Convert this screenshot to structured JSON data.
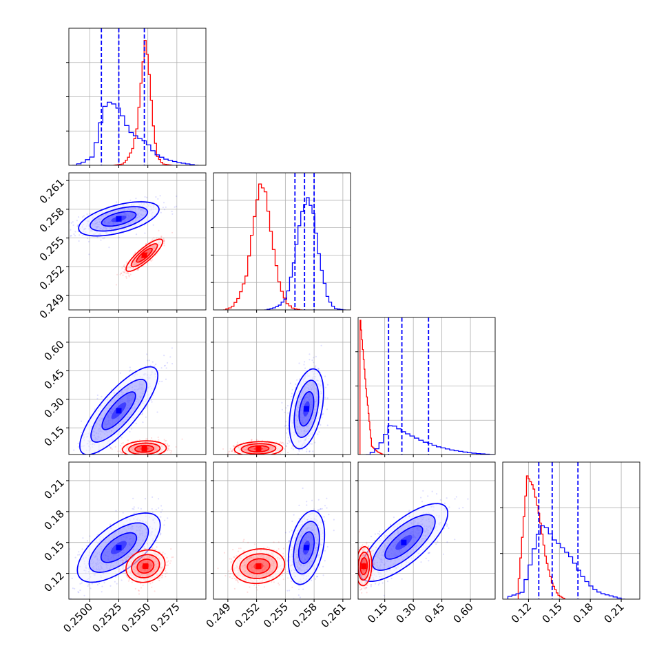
{
  "chart_data": {
    "type": "corner",
    "grid": true,
    "colors": {
      "red": "#ff0000",
      "blue": "#0000ff",
      "grid": "#b0b0b0",
      "frame": "#000000"
    },
    "parameters": [
      {
        "xlim": [
          0.2482,
          0.26
        ],
        "ticks": [
          0.25,
          0.2525,
          0.255,
          0.2575
        ],
        "tick_labels": [
          "0.2500",
          "0.2525",
          "0.2550",
          "0.2575"
        ]
      },
      {
        "xlim": [
          0.2475,
          0.2618
        ],
        "ticks": [
          0.249,
          0.252,
          0.255,
          0.258,
          0.261
        ],
        "tick_labels": [
          "0.249",
          "0.252",
          "0.255",
          "0.258",
          "0.261"
        ]
      },
      {
        "xlim": [
          0.01,
          0.73
        ],
        "ticks": [
          0.15,
          0.3,
          0.45,
          0.6
        ],
        "tick_labels": [
          "0.15",
          "0.30",
          "0.45",
          "0.60"
        ]
      },
      {
        "xlim": [
          0.095,
          0.228
        ],
        "ticks": [
          0.12,
          0.15,
          0.18,
          0.21
        ],
        "tick_labels": [
          "0.12",
          "0.15",
          "0.18",
          "0.21"
        ]
      }
    ],
    "marginals": [
      {
        "quantiles": [
          0.251,
          0.2525,
          0.2547
        ],
        "diag_ticks": 3,
        "red": [
          [
            0.252,
            0
          ],
          [
            0.2528,
            0.01
          ],
          [
            0.2532,
            0.05
          ],
          [
            0.2536,
            0.12
          ],
          [
            0.254,
            0.28
          ],
          [
            0.2543,
            0.58
          ],
          [
            0.2547,
            0.93
          ],
          [
            0.255,
            0.7
          ],
          [
            0.2554,
            0.28
          ],
          [
            0.2557,
            0.07
          ],
          [
            0.2562,
            0.01
          ],
          [
            0.257,
            0
          ]
        ],
        "blue": [
          [
            0.2485,
            0
          ],
          [
            0.2492,
            0.02
          ],
          [
            0.25,
            0.06
          ],
          [
            0.2505,
            0.2
          ],
          [
            0.251,
            0.42
          ],
          [
            0.2515,
            0.46
          ],
          [
            0.2521,
            0.44
          ],
          [
            0.2527,
            0.35
          ],
          [
            0.2532,
            0.25
          ],
          [
            0.254,
            0.2
          ],
          [
            0.2547,
            0.17
          ],
          [
            0.2552,
            0.11
          ],
          [
            0.2557,
            0.07
          ],
          [
            0.2565,
            0.04
          ],
          [
            0.2575,
            0.02
          ],
          [
            0.259,
            0
          ]
        ]
      },
      {
        "quantiles": [
          0.256,
          0.257,
          0.258
        ],
        "diag_ticks": 4,
        "red": [
          [
            0.2485,
            0
          ],
          [
            0.2493,
            0.02
          ],
          [
            0.25,
            0.09
          ],
          [
            0.2508,
            0.25
          ],
          [
            0.2515,
            0.62
          ],
          [
            0.2522,
            0.92
          ],
          [
            0.2528,
            0.86
          ],
          [
            0.2535,
            0.5
          ],
          [
            0.2543,
            0.17
          ],
          [
            0.255,
            0.05
          ],
          [
            0.2557,
            0.01
          ],
          [
            0.2565,
            0
          ]
        ],
        "blue": [
          [
            0.2528,
            0
          ],
          [
            0.2535,
            0.01
          ],
          [
            0.2542,
            0.03
          ],
          [
            0.255,
            0.09
          ],
          [
            0.2557,
            0.33
          ],
          [
            0.2565,
            0.7
          ],
          [
            0.2572,
            0.82
          ],
          [
            0.2578,
            0.7
          ],
          [
            0.2585,
            0.34
          ],
          [
            0.2593,
            0.08
          ],
          [
            0.26,
            0.01
          ],
          [
            0.261,
            0
          ]
        ]
      },
      {
        "quantiles": [
          0.17,
          0.24,
          0.38
        ],
        "diag_ticks": 3,
        "red": [
          [
            0.02,
            0.98
          ],
          [
            0.05,
            0.48
          ],
          [
            0.08,
            0.06
          ],
          [
            0.11,
            0.02
          ],
          [
            0.14,
            0
          ]
        ],
        "blue": [
          [
            0.05,
            0
          ],
          [
            0.08,
            0.02
          ],
          [
            0.11,
            0.06
          ],
          [
            0.14,
            0.14
          ],
          [
            0.17,
            0.22
          ],
          [
            0.2,
            0.2
          ],
          [
            0.23,
            0.17
          ],
          [
            0.26,
            0.15
          ],
          [
            0.29,
            0.13
          ],
          [
            0.32,
            0.11
          ],
          [
            0.35,
            0.09
          ],
          [
            0.38,
            0.08
          ],
          [
            0.41,
            0.06
          ],
          [
            0.44,
            0.05
          ],
          [
            0.47,
            0.04
          ],
          [
            0.5,
            0.03
          ],
          [
            0.53,
            0.025
          ],
          [
            0.56,
            0.018
          ],
          [
            0.59,
            0.012
          ],
          [
            0.62,
            0.008
          ],
          [
            0.65,
            0.005
          ],
          [
            0.7,
            0
          ]
        ]
      },
      {
        "quantiles": [
          0.13,
          0.143,
          0.168
        ],
        "diag_ticks": 2,
        "red": [
          [
            0.11,
            0.15
          ],
          [
            0.118,
            0.9
          ],
          [
            0.124,
            0.82
          ],
          [
            0.13,
            0.6
          ],
          [
            0.136,
            0.3
          ],
          [
            0.142,
            0.12
          ],
          [
            0.148,
            0.03
          ],
          [
            0.155,
            0
          ]
        ],
        "blue": [
          [
            0.1,
            0.02
          ],
          [
            0.112,
            0.05
          ],
          [
            0.118,
            0.2
          ],
          [
            0.124,
            0.38
          ],
          [
            0.13,
            0.54
          ],
          [
            0.136,
            0.52
          ],
          [
            0.142,
            0.44
          ],
          [
            0.148,
            0.4
          ],
          [
            0.154,
            0.35
          ],
          [
            0.16,
            0.3
          ],
          [
            0.166,
            0.22
          ],
          [
            0.172,
            0.15
          ],
          [
            0.178,
            0.1
          ],
          [
            0.184,
            0.06
          ],
          [
            0.19,
            0.04
          ],
          [
            0.2,
            0.02
          ],
          [
            0.21,
            0
          ]
        ]
      }
    ],
    "joints": [
      {
        "i": 1,
        "j": 0,
        "red": {
          "c": [
            0.2547,
            0.2532
          ],
          "s": [
            0.00075,
            0.0008
          ],
          "r": 0.85
        },
        "blue": {
          "c": [
            0.2525,
            0.257
          ],
          "s": [
            0.00165,
            0.00085
          ],
          "r": 0.55
        }
      },
      {
        "i": 2,
        "j": 0,
        "red": {
          "c": [
            0.2547,
            0.04
          ],
          "s": [
            0.0009,
            0.02
          ],
          "r": 0.1
        },
        "blue": {
          "c": [
            0.2525,
            0.24
          ],
          "s": [
            0.0016,
            0.11
          ],
          "r": 0.8
        }
      },
      {
        "i": 2,
        "j": 1,
        "red": {
          "c": [
            0.2522,
            0.04
          ],
          "s": [
            0.0012,
            0.018
          ],
          "r": 0.1
        },
        "blue": {
          "c": [
            0.2572,
            0.25
          ],
          "s": [
            0.00085,
            0.1
          ],
          "r": 0.4
        }
      },
      {
        "i": 3,
        "j": 0,
        "red": {
          "c": [
            0.2548,
            0.127
          ],
          "s": [
            0.0008,
            0.0075
          ],
          "r": 0.15
        },
        "blue": {
          "c": [
            0.2525,
            0.145
          ],
          "s": [
            0.0017,
            0.016
          ],
          "r": 0.65
        }
      },
      {
        "i": 3,
        "j": 1,
        "red": {
          "c": [
            0.2522,
            0.127
          ],
          "s": [
            0.0013,
            0.008
          ],
          "r": 0.1
        },
        "blue": {
          "c": [
            0.2572,
            0.145
          ],
          "s": [
            0.0009,
            0.017
          ],
          "r": 0.35
        }
      },
      {
        "i": 3,
        "j": 2,
        "red": {
          "c": [
            0.04,
            0.127
          ],
          "s": [
            0.02,
            0.009
          ],
          "r": 0.1
        },
        "blue": {
          "c": [
            0.25,
            0.15
          ],
          "s": [
            0.11,
            0.018
          ],
          "r": 0.75
        }
      }
    ]
  }
}
